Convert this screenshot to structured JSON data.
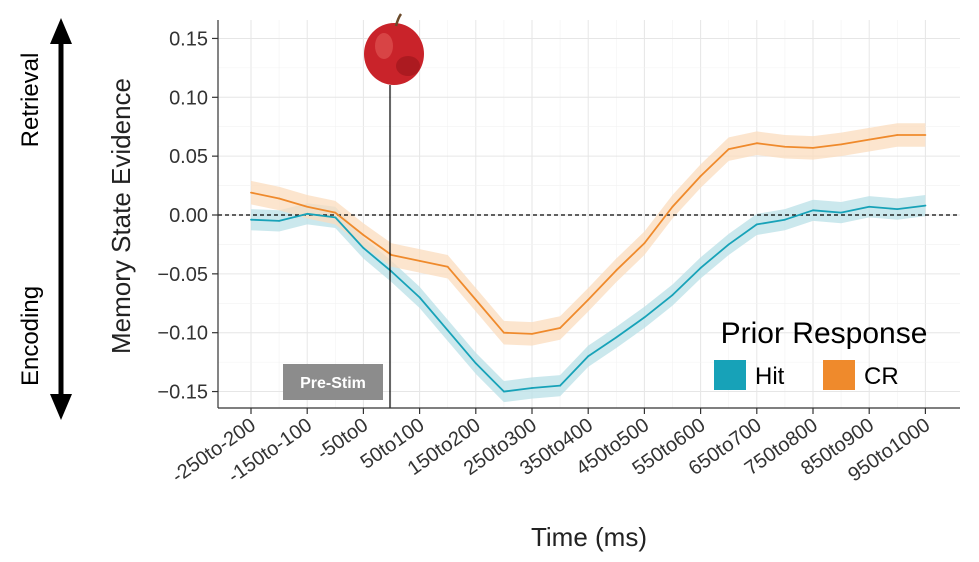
{
  "chart_data": {
    "type": "line",
    "xlabel": "Time (ms)",
    "ylabel": "Memory State Evidence",
    "ylim": [
      -0.165,
      0.165
    ],
    "yticks": [
      -0.15,
      -0.1,
      -0.05,
      0.0,
      0.05,
      0.1,
      0.15
    ],
    "ytick_labels": [
      "−0.15",
      "−0.10",
      "−0.05",
      "0.00",
      "0.05",
      "0.10",
      "0.15"
    ],
    "x_ticks_labeled": [
      "-250to-200",
      "-150to-100",
      "-50to0",
      "50to100",
      "150to200",
      "250to300",
      "350to400",
      "450to500",
      "550to600",
      "650to700",
      "750to800",
      "850to900",
      "950to1000"
    ],
    "grid": true,
    "zero_line": "dashed",
    "stimulus_marker": {
      "label": "Pre-Stim",
      "icon": "apple-icon"
    },
    "side_labels": {
      "top": "Retrieval",
      "bottom": "Encoding"
    },
    "legend": {
      "title": "Prior Response",
      "position": "bottom-right"
    },
    "series": [
      {
        "name": "Hit",
        "color": "#17a2b8",
        "band_color": "#b9e0e7",
        "values": [
          -0.004,
          -0.005,
          0.001,
          -0.002,
          -0.028,
          -0.048,
          -0.07,
          -0.098,
          -0.126,
          -0.15,
          -0.147,
          -0.145,
          -0.12,
          -0.104,
          -0.087,
          -0.068,
          -0.045,
          -0.025,
          -0.008,
          -0.004,
          0.004,
          0.002,
          0.007,
          0.005,
          0.008
        ],
        "ci": 0.009
      },
      {
        "name": "CR",
        "color": "#ef8a2c",
        "band_color": "#fbdcbe",
        "values": [
          0.019,
          0.014,
          0.007,
          0.002,
          -0.017,
          -0.034,
          -0.039,
          -0.044,
          -0.072,
          -0.1,
          -0.101,
          -0.096,
          -0.072,
          -0.047,
          -0.024,
          0.007,
          0.033,
          0.056,
          0.061,
          0.058,
          0.057,
          0.06,
          0.064,
          0.068,
          0.068
        ],
        "ci": 0.01
      }
    ]
  }
}
